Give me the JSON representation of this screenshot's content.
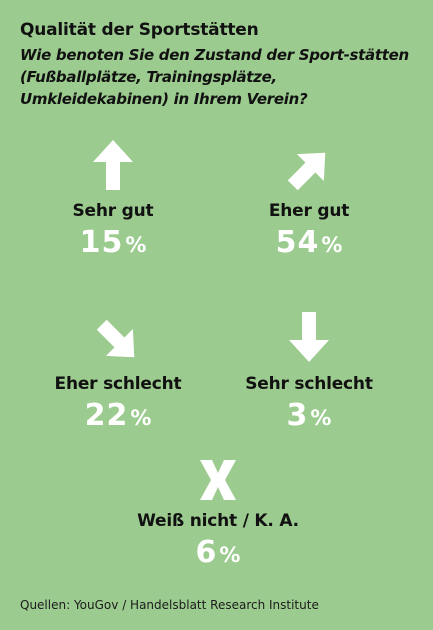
{
  "title": "Qualität der Sportstätten",
  "subtitle": "Wie benoten Sie den Zustand der Sport-stätten (Fußballplätze, Trainingsplätze, Umkleidekabinen) in Ihrem Verein?",
  "source": "Quellen: YouGov / Handelsblatt Research Institute",
  "colors": {
    "background": "#9ccb8f",
    "icon": "#ffffff",
    "label": "#111111",
    "value": "#ffffff"
  },
  "chart_data": {
    "type": "table",
    "title": "Qualität der Sportstätten",
    "unit": "%",
    "categories": [
      "Sehr gut",
      "Eher gut",
      "Eher schlecht",
      "Sehr schlecht",
      "Weiß nicht / K. A."
    ],
    "values": [
      15,
      54,
      22,
      3,
      6
    ],
    "icons": [
      "arrow-up-icon",
      "arrow-up-right-icon",
      "arrow-down-right-icon",
      "arrow-down-icon",
      "x-icon"
    ],
    "items": [
      {
        "label": "Sehr gut",
        "value": "15",
        "unit": "%",
        "icon": "arrow-up-icon"
      },
      {
        "label": "Eher gut",
        "value": "54",
        "unit": "%",
        "icon": "arrow-up-right-icon"
      },
      {
        "label": "Eher schlecht",
        "value": "22",
        "unit": "%",
        "icon": "arrow-down-right-icon"
      },
      {
        "label": "Sehr schlecht",
        "value": "3",
        "unit": "%",
        "icon": "arrow-down-icon"
      },
      {
        "label": "Weiß nicht / K. A.",
        "value": "6",
        "unit": "%",
        "icon": "x-icon"
      }
    ]
  }
}
